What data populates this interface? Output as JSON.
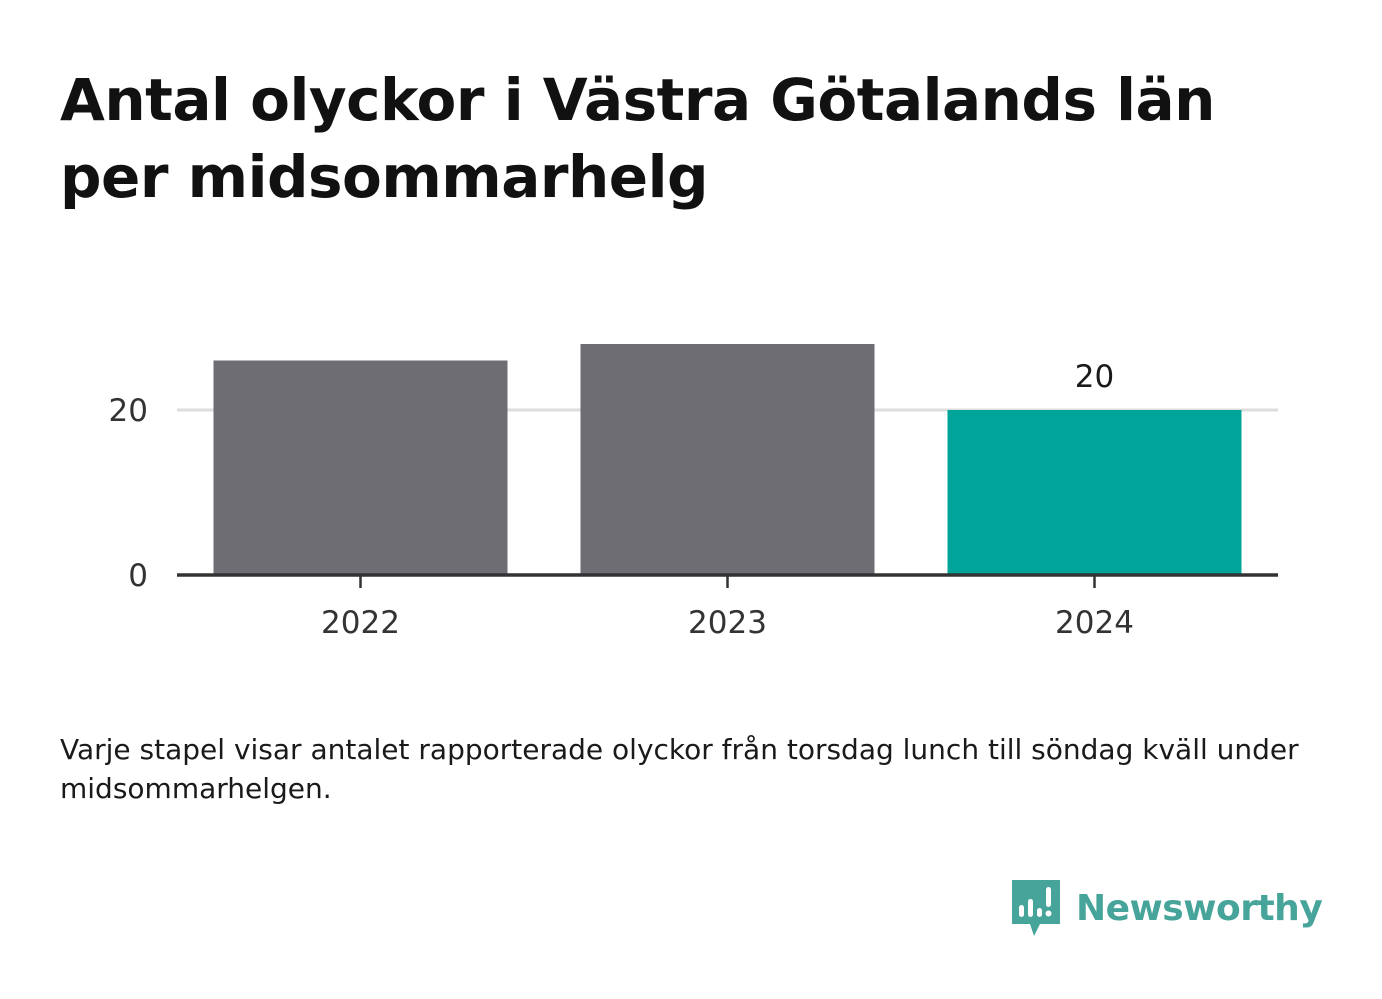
{
  "chart_data": {
    "type": "bar",
    "title": "Antal olyckor i Västra Götalands län per midsommarhelg",
    "categories": [
      "2022",
      "2023",
      "2024"
    ],
    "values": [
      26,
      28,
      20
    ],
    "highlight_index": 2,
    "value_labels": [
      null,
      null,
      "20"
    ],
    "xlabel": "",
    "ylabel": "",
    "ylim": [
      0,
      30
    ],
    "yticks": [
      0,
      20
    ],
    "ytick_labels": [
      "0",
      "20"
    ],
    "grid": true,
    "legend": "none",
    "colors": {
      "default_bar": "#6e6d73",
      "highlight_bar": "#00a499",
      "grid": "#dddddd",
      "axis": "#333333"
    }
  },
  "note": "Varje stapel visar antalet rapporterade olyckor från torsdag lunch till söndag kväll under midsommarhelgen.",
  "brand": {
    "name": "Newsworthy",
    "icon": "newsworthy-logo-icon",
    "color": "#46a49a"
  }
}
